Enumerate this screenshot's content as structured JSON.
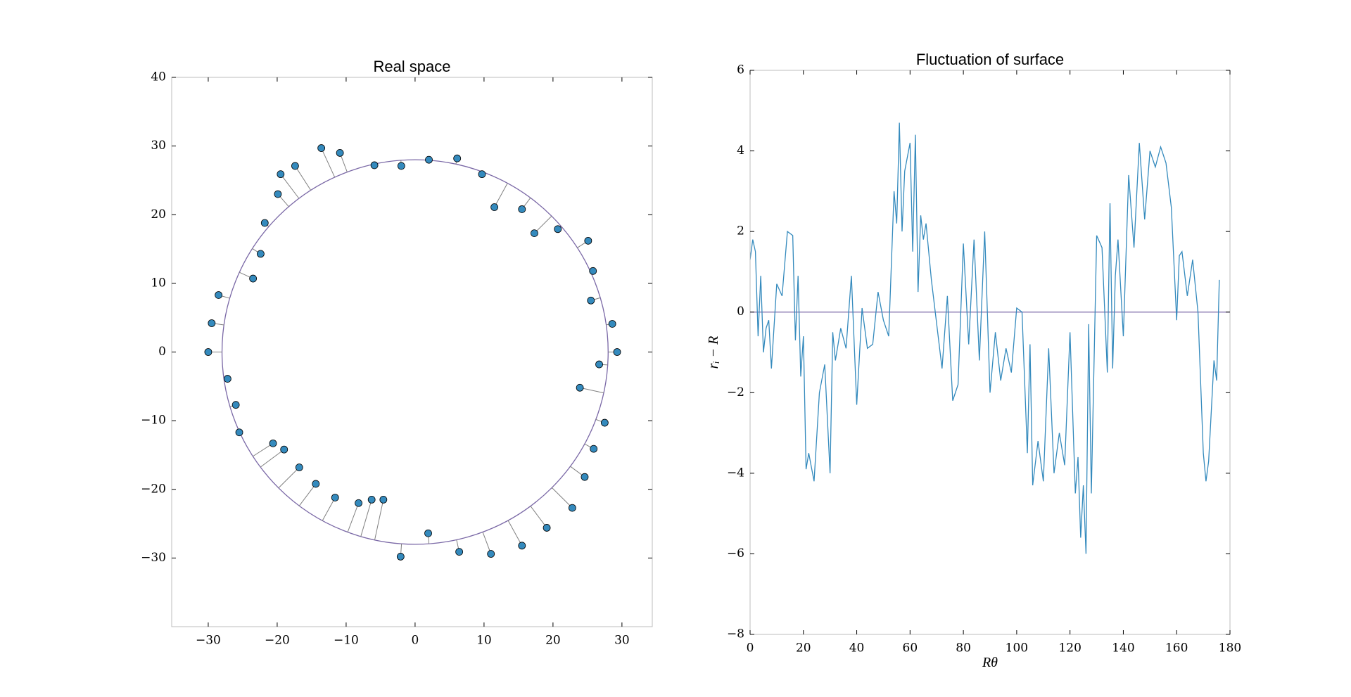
{
  "chart_data": [
    {
      "type": "scatter",
      "title": "Real space",
      "x": [
        29.3,
        28.6,
        25.5,
        25.8,
        25.1,
        20.7,
        17.3,
        15.5,
        11.5,
        9.7,
        6.1,
        2.0,
        -2.0,
        -5.9,
        -10.9,
        -13.6,
        -17.4,
        -19.5,
        -19.9,
        -21.8,
        -22.4,
        -23.5,
        -28.5,
        -29.5,
        -30.0,
        -27.2,
        -26.0,
        -25.5,
        -20.6,
        -19.0,
        -16.8,
        -14.4,
        -11.6,
        -8.2,
        -6.3,
        -4.6,
        -2.1,
        1.9,
        6.4,
        11.0,
        15.5,
        19.1,
        22.8,
        24.6,
        25.9,
        27.5,
        23.9,
        26.7
      ],
      "y": [
        0.0,
        4.1,
        7.5,
        11.8,
        16.2,
        17.9,
        17.3,
        20.8,
        21.1,
        25.9,
        28.2,
        28.0,
        27.1,
        27.2,
        29.0,
        29.7,
        27.1,
        25.9,
        23.0,
        18.8,
        14.3,
        10.7,
        8.3,
        4.2,
        0.0,
        -3.9,
        -7.7,
        -11.7,
        -13.3,
        -14.2,
        -16.8,
        -19.2,
        -21.2,
        -22.0,
        -21.5,
        -21.5,
        -29.8,
        -26.4,
        -29.1,
        -29.4,
        -28.2,
        -25.6,
        -22.7,
        -18.2,
        -14.1,
        -10.3,
        -5.2,
        -1.8
      ],
      "color": "#348abd",
      "circle_radius": 28,
      "circle_color": "#7a68a6",
      "spoke_color": "#808080",
      "xlim": [
        -35.3,
        34.4
      ],
      "ylim": [
        -40,
        40
      ],
      "xticks": [
        {
          "value": -30,
          "label": "−30"
        },
        {
          "value": -20,
          "label": "−20"
        },
        {
          "value": -10,
          "label": "−10"
        },
        0,
        10,
        20,
        30
      ],
      "yticks": [
        {
          "value": -30,
          "label": "−30"
        },
        {
          "value": -20,
          "label": "−20"
        },
        {
          "value": -10,
          "label": "−10"
        },
        0,
        10,
        20,
        30,
        40
      ]
    },
    {
      "type": "line",
      "title": "Fluctuation of surface",
      "xlabel": "Rθ",
      "ylabel": "rᵢ − R",
      "x": [
        0,
        1,
        2,
        3,
        4,
        5,
        6,
        7,
        8,
        10,
        12,
        14,
        16,
        17,
        18,
        19,
        20,
        21,
        22,
        24,
        26,
        28,
        30,
        31,
        32,
        34,
        36,
        38,
        40,
        42,
        44,
        46,
        48,
        50,
        52,
        54,
        55,
        56,
        57,
        58,
        60,
        61,
        62,
        63,
        64,
        65,
        66,
        68,
        70,
        72,
        74,
        76,
        78,
        80,
        82,
        84,
        86,
        88,
        90,
        92,
        94,
        96,
        98,
        100,
        102,
        104,
        105,
        106,
        108,
        110,
        112,
        114,
        116,
        118,
        120,
        122,
        123,
        124,
        125,
        126,
        127,
        128,
        130,
        132,
        134,
        135,
        136,
        137,
        138,
        140,
        142,
        144,
        146,
        148,
        150,
        152,
        154,
        156,
        158,
        160,
        161,
        162,
        164,
        166,
        168,
        170,
        171,
        172,
        174,
        175,
        176
      ],
      "values": [
        1.3,
        1.8,
        1.5,
        -0.6,
        0.9,
        -1.0,
        -0.4,
        -0.2,
        -1.4,
        0.7,
        0.4,
        2.0,
        1.9,
        -0.7,
        0.9,
        -1.6,
        -0.6,
        -3.9,
        -3.5,
        -4.2,
        -2.0,
        -1.3,
        -4.0,
        -0.5,
        -1.2,
        -0.4,
        -0.9,
        0.9,
        -2.3,
        0.1,
        -0.9,
        -0.8,
        0.5,
        -0.2,
        -0.6,
        3.0,
        2.2,
        4.7,
        2.0,
        3.5,
        4.2,
        1.5,
        4.4,
        0.5,
        2.4,
        1.8,
        2.2,
        0.8,
        -0.3,
        -1.4,
        0.4,
        -2.2,
        -1.8,
        1.7,
        -0.8,
        1.8,
        -1.2,
        2.0,
        -2.0,
        -0.5,
        -1.7,
        -0.9,
        -1.5,
        0.1,
        0.0,
        -3.5,
        -0.8,
        -4.3,
        -3.2,
        -4.2,
        -0.9,
        -4.0,
        -3.0,
        -3.8,
        -0.5,
        -4.5,
        -3.6,
        -5.6,
        -4.3,
        -6.0,
        -0.3,
        -4.5,
        1.9,
        1.6,
        -1.5,
        2.7,
        -1.4,
        0.9,
        1.8,
        -0.6,
        3.4,
        1.6,
        4.2,
        2.3,
        4.0,
        3.6,
        4.1,
        3.7,
        2.6,
        -0.2,
        1.4,
        1.5,
        0.4,
        1.3,
        0.0,
        -3.5,
        -4.2,
        -3.7,
        -1.2,
        -1.7,
        0.8
      ],
      "color": "#348abd",
      "hline": 0,
      "hline_color": "#7a68a6",
      "xlim": [
        0,
        180
      ],
      "ylim": [
        -8,
        6
      ],
      "xticks": [
        0,
        20,
        40,
        60,
        80,
        100,
        120,
        140,
        160,
        180
      ],
      "yticks": [
        {
          "value": -8,
          "label": "−8"
        },
        {
          "value": -6,
          "label": "−6"
        },
        {
          "value": -4,
          "label": "−4"
        },
        {
          "value": -2,
          "label": "−2"
        },
        0,
        2,
        4,
        6
      ]
    }
  ]
}
